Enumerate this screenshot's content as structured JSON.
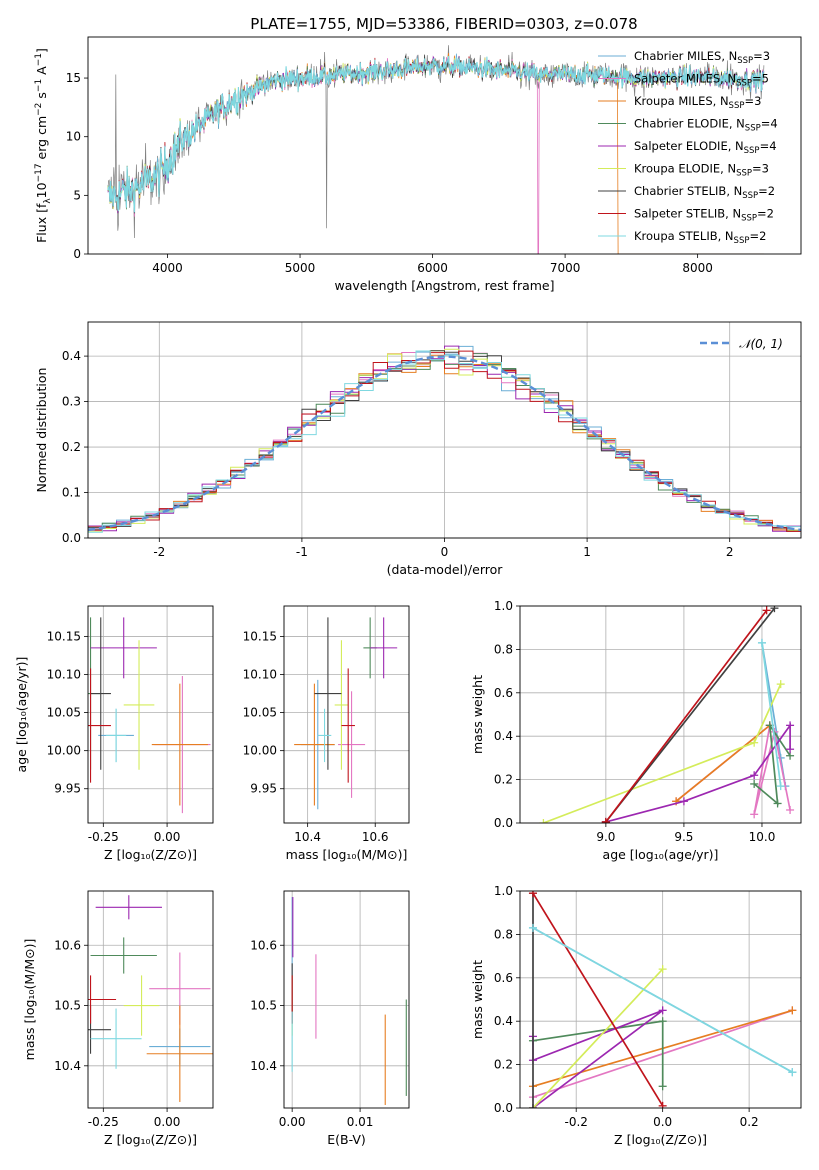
{
  "figure": {
    "title": "PLATE=1755, MJD=53386, FIBERID=0303, z=0.078"
  },
  "colors": {
    "grid": "#b0b0b0",
    "bg": "#ffffff",
    "model_order": [
      "Chabrier MILES",
      "Salpeter MILES",
      "Kroupa MILES",
      "Chabrier ELODIE",
      "Salpeter ELODIE",
      "Kroupa ELODIE",
      "Chabrier STELIB",
      "Salpeter STELIB",
      "Kroupa STELIB"
    ],
    "model_colors": [
      "#6baed6",
      "#e377c2",
      "#e67e22",
      "#4f8a5b",
      "#9c27b0",
      "#d4ec5a",
      "#404040",
      "#c0141c",
      "#7fd8e0"
    ],
    "spectrum_data": "#808080",
    "normal_curve": "#5b8fd6"
  },
  "chart_data": [
    {
      "id": "spectrum",
      "type": "line",
      "title": "PLATE=1755, MJD=53386, FIBERID=0303, z=0.078",
      "xlabel": "wavelength [Angstrom, rest frame]",
      "ylabel": "Flux [fλ10⁻¹⁷ erg cm⁻² s⁻¹ A⁻¹]",
      "ylabel_parts": [
        "Flux [f",
        "λ",
        "10",
        "−17",
        " erg cm",
        "−2",
        " s",
        "−1",
        " A",
        "−1",
        "]"
      ],
      "xlim": [
        3400,
        8780
      ],
      "ylim": [
        0,
        18.5
      ],
      "xticks": [
        4000,
        5000,
        6000,
        7000,
        8000
      ],
      "yticks": [
        0,
        5,
        10,
        15
      ],
      "legend_position": "upper-right",
      "legend": [
        {
          "base": "Chabrier MILES, N",
          "sub": "SSP",
          "tail": "=3"
        },
        {
          "base": "Salpeter MILES, N",
          "sub": "SSP",
          "tail": "=5"
        },
        {
          "base": "Kroupa MILES, N",
          "sub": "SSP",
          "tail": "=3"
        },
        {
          "base": "Chabrier ELODIE, N",
          "sub": "SSP",
          "tail": "=4"
        },
        {
          "base": "Salpeter ELODIE, N",
          "sub": "SSP",
          "tail": "=4"
        },
        {
          "base": "Kroupa ELODIE, N",
          "sub": "SSP",
          "tail": "=3"
        },
        {
          "base": "Chabrier STELIB, N",
          "sub": "SSP",
          "tail": "=2"
        },
        {
          "base": "Salpeter STELIB, N",
          "sub": "SSP",
          "tail": "=2"
        },
        {
          "base": "Kroupa STELIB, N",
          "sub": "SSP",
          "tail": "=2"
        }
      ],
      "continuum_knots": [
        [
          3550,
          4.8
        ],
        [
          3800,
          5.8
        ],
        [
          3950,
          7.0
        ],
        [
          4100,
          9.6
        ],
        [
          4300,
          11.5
        ],
        [
          4500,
          13.2
        ],
        [
          4800,
          14.8
        ],
        [
          5200,
          15.2
        ],
        [
          5600,
          15.6
        ],
        [
          6000,
          16.1
        ],
        [
          6400,
          15.8
        ],
        [
          6800,
          15.3
        ],
        [
          7200,
          15.3
        ],
        [
          7600,
          15.0
        ],
        [
          8000,
          15.1
        ],
        [
          8500,
          14.8
        ]
      ]
    },
    {
      "id": "residual-histogram",
      "type": "bar",
      "xlabel": "(data-model)/error",
      "ylabel": "Normed distribution",
      "xlim": [
        -2.5,
        2.5
      ],
      "ylim": [
        0,
        0.475
      ],
      "xticks": [
        -2,
        -1,
        0,
        1,
        2
      ],
      "yticks": [
        0.0,
        0.1,
        0.2,
        0.3,
        0.4
      ],
      "legend": "𝒩(0, 1)",
      "legend_position": "upper-right",
      "grid": true,
      "bin_width": 0.1
    },
    {
      "id": "age-vs-Z",
      "type": "scatter",
      "xlabel": "Z [log₁₀(Z/Z⊙)]",
      "ylabel": "age  [log₁₀(age/yr)]",
      "xlim": [
        -0.31,
        0.18
      ],
      "ylim": [
        9.905,
        10.19
      ],
      "xticks": [
        -0.25,
        0.0
      ],
      "yticks": [
        9.95,
        10.0,
        10.05,
        10.1,
        10.15
      ],
      "grid": true,
      "points": [
        {
          "x": -0.2,
          "y": 10.02,
          "xerr": 0.07,
          "yerr": 0.035
        },
        {
          "x": 0.06,
          "y": 10.008,
          "xerr": 0.11,
          "yerr": 0.09
        },
        {
          "x": 0.05,
          "y": 10.008,
          "xerr": 0.11,
          "yerr": 0.08
        },
        {
          "x": -0.3,
          "y": 10.075,
          "xerr": 0.04,
          "yerr": 0.1
        },
        {
          "x": -0.17,
          "y": 10.135,
          "xerr": 0.13,
          "yerr": 0.04
        },
        {
          "x": -0.11,
          "y": 10.06,
          "xerr": 0.06,
          "yerr": 0.085
        },
        {
          "x": -0.26,
          "y": 10.075,
          "xerr": 0.04,
          "yerr": 0.1
        },
        {
          "x": -0.3,
          "y": 10.033,
          "xerr": 0.08,
          "yerr": 0.075
        },
        {
          "x": -0.2,
          "y": 10.02,
          "xerr": 0.04,
          "yerr": 0.035
        }
      ]
    },
    {
      "id": "age-vs-mass",
      "type": "scatter",
      "xlabel": "mass [log₁₀(M/M⊙)]",
      "ylabel": "",
      "xlim": [
        10.33,
        10.7
      ],
      "ylim": [
        9.905,
        10.19
      ],
      "xticks": [
        10.4,
        10.6
      ],
      "yticks": [
        9.95,
        10.0,
        10.05,
        10.1,
        10.15
      ],
      "grid": true,
      "points": [
        {
          "x": 10.43,
          "y": 10.008,
          "xerr": 0.05,
          "yerr": 0.085
        },
        {
          "x": 10.53,
          "y": 10.008,
          "xerr": 0.04,
          "yerr": 0.07
        },
        {
          "x": 10.42,
          "y": 10.008,
          "xerr": 0.06,
          "yerr": 0.08
        },
        {
          "x": 10.585,
          "y": 10.135,
          "xerr": 0.02,
          "yerr": 0.04
        },
        {
          "x": 10.625,
          "y": 10.135,
          "xerr": 0.04,
          "yerr": 0.04
        },
        {
          "x": 10.5,
          "y": 10.06,
          "xerr": 0.02,
          "yerr": 0.085
        },
        {
          "x": 10.46,
          "y": 10.075,
          "xerr": 0.04,
          "yerr": 0.1
        },
        {
          "x": 10.52,
          "y": 10.033,
          "xerr": 0.02,
          "yerr": 0.075
        },
        {
          "x": 10.45,
          "y": 10.02,
          "xerr": 0.02,
          "yerr": 0.035
        }
      ]
    },
    {
      "id": "mass-weight-vs-age",
      "type": "line",
      "xlabel": "age  [log₁₀(age/yr)]",
      "ylabel": "mass weight",
      "xlim": [
        8.45,
        10.25
      ],
      "ylim": [
        0,
        1
      ],
      "xticks": [
        9.0,
        9.5,
        10.0
      ],
      "yticks": [
        0.0,
        0.2,
        0.4,
        0.6,
        0.8,
        1.0
      ],
      "grid": true,
      "series": [
        {
          "x": [
            10.0,
            10.12,
            10.15
          ],
          "y": [
            0.83,
            0.3,
            0.17
          ]
        },
        {
          "x": [
            9.45,
            10.05,
            9.95,
            10.08,
            10.18
          ],
          "y": [
            0.1,
            0.45,
            0.04,
            0.42,
            0.06
          ]
        },
        {
          "x": [
            9.45,
            10.05
          ],
          "y": [
            0.1,
            0.45
          ]
        },
        {
          "x": [
            9.95,
            10.1,
            10.05,
            10.18
          ],
          "y": [
            0.18,
            0.09,
            0.45,
            0.31
          ]
        },
        {
          "x": [
            9.0,
            9.5,
            9.95,
            10.18,
            10.18
          ],
          "y": [
            0.005,
            0.1,
            0.22,
            0.45,
            0.34
          ]
        },
        {
          "x": [
            8.6,
            9.95,
            10.12
          ],
          "y": [
            0.0,
            0.37,
            0.64
          ]
        },
        {
          "x": [
            9.0,
            10.08
          ],
          "y": [
            0.005,
            0.99
          ]
        },
        {
          "x": [
            9.0,
            10.03
          ],
          "y": [
            0.005,
            0.98
          ]
        },
        {
          "x": [
            10.0,
            10.12
          ],
          "y": [
            0.83,
            0.17
          ]
        }
      ]
    },
    {
      "id": "mass-vs-Z",
      "type": "scatter",
      "xlabel": "Z [log₁₀(Z/Z⊙)]",
      "ylabel": "mass [log₁₀(M/M⊙)]",
      "xlim": [
        -0.31,
        0.18
      ],
      "ylim": [
        10.33,
        10.69
      ],
      "xticks": [
        -0.25,
        0.0
      ],
      "yticks": [
        10.4,
        10.5,
        10.6
      ],
      "grid": true,
      "points": [
        {
          "x": 0.05,
          "y": 10.432,
          "xerr": 0.12,
          "yerr": 0.03
        },
        {
          "x": 0.05,
          "y": 10.528,
          "xerr": 0.12,
          "yerr": 0.06
        },
        {
          "x": 0.05,
          "y": 10.42,
          "xerr": 0.13,
          "yerr": 0.08
        },
        {
          "x": -0.17,
          "y": 10.583,
          "xerr": 0.13,
          "yerr": 0.03
        },
        {
          "x": -0.15,
          "y": 10.663,
          "xerr": 0.13,
          "yerr": 0.02
        },
        {
          "x": -0.1,
          "y": 10.5,
          "xerr": 0.07,
          "yerr": 0.05
        },
        {
          "x": -0.3,
          "y": 10.46,
          "xerr": 0.08,
          "yerr": 0.04
        },
        {
          "x": -0.3,
          "y": 10.51,
          "xerr": 0.1,
          "yerr": 0.04
        },
        {
          "x": -0.2,
          "y": 10.445,
          "xerr": 0.1,
          "yerr": 0.05
        }
      ]
    },
    {
      "id": "mass-vs-EBV",
      "type": "scatter",
      "xlabel": "E(B-V)",
      "ylabel": "",
      "xlim": [
        -0.0012,
        0.0172
      ],
      "ylim": [
        10.33,
        10.69
      ],
      "xticks": [
        0.0,
        0.01
      ],
      "yticks": [
        10.4,
        10.5,
        10.6
      ],
      "grid": true,
      "points": [
        {
          "x": 0.0,
          "y": 10.58,
          "xerr": 0,
          "yerr": 0.1
        },
        {
          "x": 0.0035,
          "y": 10.515,
          "xerr": 0,
          "yerr": 0.07
        },
        {
          "x": 0.0137,
          "y": 10.41,
          "xerr": 0,
          "yerr": 0.075
        },
        {
          "x": 0.0168,
          "y": 10.43,
          "xerr": 0,
          "yerr": 0.08
        },
        {
          "x": 0.0001,
          "y": 10.63,
          "xerr": 0,
          "yerr": 0.05
        },
        {
          "x": 0.0,
          "y": 10.5,
          "xerr": 0,
          "yerr": 0.05
        },
        {
          "x": 0.0,
          "y": 10.52,
          "xerr": 0,
          "yerr": 0.05
        },
        {
          "x": 0.0,
          "y": 10.51,
          "xerr": 0,
          "yerr": 0.04
        },
        {
          "x": 0.0,
          "y": 10.44,
          "xerr": 0,
          "yerr": 0.05
        }
      ]
    },
    {
      "id": "mass-weight-vs-Z",
      "type": "line",
      "xlabel": "Z [log₁₀(Z/Z⊙)]",
      "ylabel": "mass weight",
      "xlim": [
        -0.33,
        0.32
      ],
      "ylim": [
        0,
        1
      ],
      "xticks": [
        -0.2,
        0.0,
        0.2
      ],
      "yticks": [
        0.0,
        0.2,
        0.4,
        0.6,
        0.8,
        1.0
      ],
      "grid": true,
      "series": [
        {
          "x": [
            -0.3,
            0.3
          ],
          "y": [
            0.83,
            0.165
          ]
        },
        {
          "x": [
            -0.3,
            0.3
          ],
          "y": [
            0.05,
            0.45
          ]
        },
        {
          "x": [
            -0.3,
            0.3
          ],
          "y": [
            0.1,
            0.45
          ]
        },
        {
          "x": [
            -0.3,
            0.0,
            0.0
          ],
          "y": [
            0.31,
            0.4,
            0.1
          ]
        },
        {
          "x": [
            -0.3,
            0.0,
            -0.3,
            -0.3
          ],
          "y": [
            0.0,
            0.45,
            0.22,
            0.33
          ]
        },
        {
          "x": [
            -0.3,
            0.0
          ],
          "y": [
            0.0,
            0.64
          ]
        },
        {
          "x": [
            -0.3,
            -0.3
          ],
          "y": [
            0.0,
            0.99
          ]
        },
        {
          "x": [
            -0.3,
            0.0
          ],
          "y": [
            0.99,
            0.01
          ]
        },
        {
          "x": [
            -0.3,
            0.3
          ],
          "y": [
            0.83,
            0.165
          ]
        }
      ]
    }
  ]
}
